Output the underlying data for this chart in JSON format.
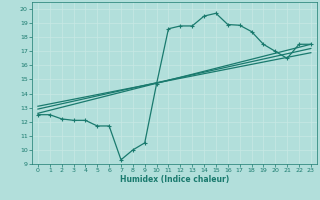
{
  "bg_color": "#b2dfdb",
  "grid_color": "#d0eeea",
  "line_color": "#1a7a6e",
  "xlabel": "Humidex (Indice chaleur)",
  "xlim": [
    -0.5,
    23.5
  ],
  "ylim": [
    9,
    20.5
  ],
  "yticks": [
    9,
    10,
    11,
    12,
    13,
    14,
    15,
    16,
    17,
    18,
    19,
    20
  ],
  "xticks": [
    0,
    1,
    2,
    3,
    4,
    5,
    6,
    7,
    8,
    9,
    10,
    11,
    12,
    13,
    14,
    15,
    16,
    17,
    18,
    19,
    20,
    21,
    22,
    23
  ],
  "line1_x": [
    0,
    1,
    2,
    3,
    4,
    5,
    6,
    7,
    8,
    9,
    10,
    11,
    12,
    13,
    14,
    15,
    16,
    17,
    18,
    19,
    20,
    21,
    22,
    23
  ],
  "line1_y": [
    12.5,
    12.5,
    12.2,
    12.1,
    12.1,
    11.7,
    11.7,
    9.3,
    10.0,
    10.5,
    14.7,
    18.6,
    18.8,
    18.8,
    19.5,
    19.7,
    18.9,
    18.85,
    18.4,
    17.5,
    17.0,
    16.5,
    17.5,
    17.5
  ],
  "line2_x": [
    0,
    23
  ],
  "line2_y": [
    12.6,
    17.5
  ],
  "line3_x": [
    0,
    23
  ],
  "line3_y": [
    12.9,
    17.2
  ],
  "line4_x": [
    0,
    23
  ],
  "line4_y": [
    13.1,
    16.9
  ]
}
